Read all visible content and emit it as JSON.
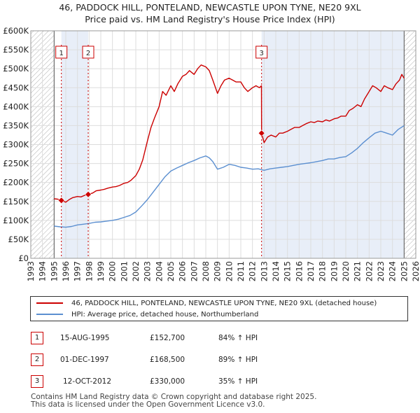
{
  "title": "46, PADDOCK HILL, PONTELAND, NEWCASTLE UPON TYNE, NE20 9XL",
  "subtitle": "Price paid vs. HM Land Registry's House Price Index (HPI)",
  "colors": {
    "property_line": "#cc0000",
    "hpi_line": "#5b8fd0",
    "shade": "#e8eef8",
    "hatch": "#aaaaaa",
    "grid": "#dddddd",
    "marker": "#cc0000"
  },
  "chart_data": {
    "type": "line",
    "title": "46, PADDOCK HILL, PONTELAND, NEWCASTLE UPON TYNE, NE20 9XL",
    "subtitle": "Price paid vs. HM Land Registry's House Price Index (HPI)",
    "xlim": [
      1993,
      2026
    ],
    "ylim": [
      0,
      600000
    ],
    "x_ticks": [
      1993,
      1994,
      1995,
      1996,
      1997,
      1998,
      1999,
      2000,
      2001,
      2002,
      2003,
      2004,
      2005,
      2006,
      2007,
      2008,
      2009,
      2010,
      2011,
      2012,
      2013,
      2014,
      2015,
      2016,
      2017,
      2018,
      2019,
      2020,
      2021,
      2022,
      2023,
      2024,
      2025,
      2026
    ],
    "y_ticks": [
      {
        "value": 0,
        "label": "£0"
      },
      {
        "value": 50000,
        "label": "£50K"
      },
      {
        "value": 100000,
        "label": "£100K"
      },
      {
        "value": 150000,
        "label": "£150K"
      },
      {
        "value": 200000,
        "label": "£200K"
      },
      {
        "value": 250000,
        "label": "£250K"
      },
      {
        "value": 300000,
        "label": "£300K"
      },
      {
        "value": 350000,
        "label": "£350K"
      },
      {
        "value": 400000,
        "label": "£400K"
      },
      {
        "value": 450000,
        "label": "£450K"
      },
      {
        "value": 500000,
        "label": "£500K"
      },
      {
        "value": 550000,
        "label": "£550K"
      },
      {
        "value": 600000,
        "label": "£600K"
      }
    ],
    "grid": true,
    "data_start": 1995.0,
    "data_end": 2025.0,
    "shaded_ranges": [
      [
        1995.62,
        1997.92
      ],
      [
        2012.78,
        2025.0
      ]
    ],
    "series": [
      {
        "name": "46, PADDOCK HILL, PONTELAND, NEWCASTLE UPON TYNE, NE20 9XL (detached house)",
        "x": [
          1995.0,
          1995.3,
          1995.62,
          1996.0,
          1996.3,
          1996.6,
          1997.0,
          1997.3,
          1997.6,
          1997.92,
          1998.3,
          1998.6,
          1999.0,
          1999.3,
          1999.6,
          2000.0,
          2000.3,
          2000.6,
          2001.0,
          2001.3,
          2001.6,
          2002.0,
          2002.3,
          2002.6,
          2003.0,
          2003.3,
          2003.6,
          2004.0,
          2004.3,
          2004.6,
          2005.0,
          2005.3,
          2005.6,
          2006.0,
          2006.3,
          2006.6,
          2007.0,
          2007.3,
          2007.6,
          2008.0,
          2008.3,
          2008.6,
          2009.0,
          2009.3,
          2009.6,
          2010.0,
          2010.3,
          2010.6,
          2011.0,
          2011.3,
          2011.6,
          2012.0,
          2012.3,
          2012.6,
          2012.77,
          2012.78,
          2013.0,
          2013.3,
          2013.6,
          2014.0,
          2014.3,
          2014.6,
          2015.0,
          2015.3,
          2015.6,
          2016.0,
          2016.3,
          2016.6,
          2017.0,
          2017.3,
          2017.6,
          2018.0,
          2018.3,
          2018.6,
          2019.0,
          2019.3,
          2019.6,
          2020.0,
          2020.3,
          2020.6,
          2021.0,
          2021.3,
          2021.6,
          2022.0,
          2022.3,
          2022.6,
          2023.0,
          2023.3,
          2023.6,
          2024.0,
          2024.3,
          2024.6,
          2024.8,
          2025.0
        ],
        "values": [
          157000,
          156000,
          152700,
          148000,
          155000,
          160000,
          163000,
          162000,
          166000,
          168500,
          172000,
          178000,
          180000,
          182000,
          185000,
          188000,
          189000,
          192000,
          198000,
          200000,
          206000,
          218000,
          235000,
          260000,
          310000,
          345000,
          370000,
          400000,
          440000,
          430000,
          455000,
          440000,
          460000,
          480000,
          485000,
          495000,
          485000,
          500000,
          510000,
          505000,
          495000,
          470000,
          435000,
          455000,
          470000,
          475000,
          470000,
          465000,
          465000,
          450000,
          440000,
          450000,
          455000,
          450000,
          455000,
          330000,
          305000,
          320000,
          325000,
          320000,
          330000,
          330000,
          335000,
          340000,
          345000,
          345000,
          350000,
          355000,
          360000,
          358000,
          362000,
          360000,
          365000,
          362000,
          368000,
          370000,
          375000,
          375000,
          390000,
          395000,
          405000,
          400000,
          420000,
          440000,
          455000,
          450000,
          440000,
          455000,
          450000,
          445000,
          460000,
          470000,
          485000,
          475000
        ]
      },
      {
        "name": "HPI: Average price, detached house, Northumberland",
        "x": [
          1995.0,
          1995.5,
          1996.0,
          1996.5,
          1997.0,
          1997.5,
          1998.0,
          1998.5,
          1999.0,
          1999.5,
          2000.0,
          2000.5,
          2001.0,
          2001.5,
          2002.0,
          2002.5,
          2003.0,
          2003.5,
          2004.0,
          2004.5,
          2005.0,
          2005.5,
          2006.0,
          2006.5,
          2007.0,
          2007.5,
          2008.0,
          2008.3,
          2008.6,
          2009.0,
          2009.5,
          2010.0,
          2010.5,
          2011.0,
          2011.5,
          2012.0,
          2012.5,
          2013.0,
          2013.5,
          2014.0,
          2014.5,
          2015.0,
          2015.5,
          2016.0,
          2016.5,
          2017.0,
          2017.5,
          2018.0,
          2018.5,
          2019.0,
          2019.5,
          2020.0,
          2020.5,
          2021.0,
          2021.5,
          2022.0,
          2022.5,
          2023.0,
          2023.5,
          2024.0,
          2024.5,
          2025.0
        ],
        "values": [
          85000,
          83000,
          82000,
          84000,
          88000,
          90000,
          92000,
          95000,
          96000,
          98000,
          100000,
          103000,
          108000,
          113000,
          122000,
          138000,
          155000,
          175000,
          195000,
          215000,
          230000,
          238000,
          245000,
          252000,
          258000,
          265000,
          270000,
          265000,
          255000,
          235000,
          240000,
          248000,
          245000,
          240000,
          238000,
          235000,
          236000,
          232000,
          236000,
          238000,
          240000,
          242000,
          245000,
          248000,
          250000,
          252000,
          255000,
          258000,
          262000,
          262000,
          266000,
          268000,
          278000,
          290000,
          305000,
          318000,
          330000,
          335000,
          330000,
          325000,
          340000,
          350000
        ]
      }
    ],
    "legend": [
      "46, PADDOCK HILL, PONTELAND, NEWCASTLE UPON TYNE, NE20 9XL (detached house)",
      "HPI: Average price, detached house, Northumberland"
    ],
    "annotations": [
      {
        "label": "1",
        "x": 1995.62,
        "y": 152700
      },
      {
        "label": "2",
        "x": 1997.92,
        "y": 168500
      },
      {
        "label": "3",
        "x": 2012.78,
        "y": 330000
      }
    ]
  },
  "transactions": [
    {
      "label": "1",
      "date": "15-AUG-1995",
      "price": "£152,700",
      "hpi": "84% ↑ HPI"
    },
    {
      "label": "2",
      "date": "01-DEC-1997",
      "price": "£168,500",
      "hpi": "89% ↑ HPI"
    },
    {
      "label": "3",
      "date": "12-OCT-2012",
      "price": "£330,000",
      "hpi": "35% ↑ HPI"
    }
  ],
  "footer": {
    "line1": "Contains HM Land Registry data © Crown copyright and database right 2025.",
    "line2": "This data is licensed under the Open Government Licence v3.0."
  }
}
